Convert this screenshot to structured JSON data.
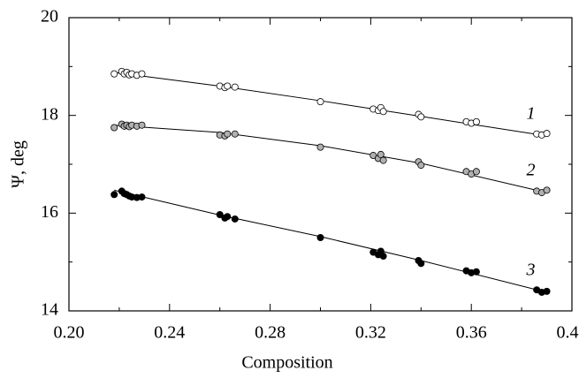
{
  "chart_data": {
    "type": "scatter",
    "xlabel": "Composition",
    "ylabel": "Ψ, deg",
    "xlim": [
      0.2,
      0.4
    ],
    "ylim": [
      14,
      20
    ],
    "xticks": [
      {
        "value": 0.2,
        "label": "0.20"
      },
      {
        "value": 0.24,
        "label": "0.24"
      },
      {
        "value": 0.28,
        "label": "0.28"
      },
      {
        "value": 0.32,
        "label": "0.32"
      },
      {
        "value": 0.36,
        "label": "0.36"
      },
      {
        "value": 0.4,
        "label": "0.40"
      }
    ],
    "yticks": [
      14,
      16,
      18,
      20
    ],
    "x_minor_ticks": [
      0.22,
      0.26,
      0.3,
      0.34,
      0.38
    ],
    "y_minor_ticks": [
      15,
      17,
      19
    ],
    "series": [
      {
        "name": "1",
        "color": "#ffffff",
        "x": [
          0.218,
          0.221,
          0.222,
          0.223,
          0.224,
          0.225,
          0.227,
          0.229,
          0.26,
          0.262,
          0.263,
          0.266,
          0.3,
          0.321,
          0.323,
          0.324,
          0.325,
          0.339,
          0.34,
          0.358,
          0.36,
          0.362,
          0.386,
          0.388,
          0.39
        ],
        "values": [
          18.85,
          18.9,
          18.85,
          18.88,
          18.83,
          18.85,
          18.82,
          18.85,
          18.6,
          18.57,
          18.6,
          18.58,
          18.28,
          18.13,
          18.1,
          18.16,
          18.08,
          18.02,
          17.97,
          17.87,
          17.84,
          17.87,
          17.62,
          17.6,
          17.63
        ],
        "fit_x": [
          0.218,
          0.26,
          0.3,
          0.34,
          0.39
        ],
        "fit_values": [
          18.88,
          18.6,
          18.3,
          17.98,
          17.58
        ]
      },
      {
        "name": "2",
        "color": "#b0b0b0",
        "x": [
          0.218,
          0.221,
          0.222,
          0.223,
          0.224,
          0.225,
          0.227,
          0.229,
          0.26,
          0.262,
          0.263,
          0.266,
          0.3,
          0.321,
          0.323,
          0.324,
          0.325,
          0.339,
          0.34,
          0.358,
          0.36,
          0.362,
          0.386,
          0.388,
          0.39
        ],
        "values": [
          17.75,
          17.82,
          17.78,
          17.8,
          17.77,
          17.8,
          17.78,
          17.8,
          17.6,
          17.58,
          17.62,
          17.62,
          17.35,
          17.18,
          17.12,
          17.2,
          17.08,
          17.05,
          16.98,
          16.85,
          16.8,
          16.85,
          16.45,
          16.42,
          16.47
        ],
        "fit_x": [
          0.218,
          0.26,
          0.3,
          0.34,
          0.39
        ],
        "fit_values": [
          17.8,
          17.65,
          17.38,
          17.02,
          16.42
        ]
      },
      {
        "name": "3",
        "color": "#000000",
        "x": [
          0.218,
          0.221,
          0.222,
          0.223,
          0.224,
          0.225,
          0.227,
          0.229,
          0.26,
          0.262,
          0.263,
          0.266,
          0.3,
          0.321,
          0.323,
          0.324,
          0.325,
          0.339,
          0.34,
          0.358,
          0.36,
          0.362,
          0.386,
          0.388,
          0.39
        ],
        "values": [
          16.38,
          16.45,
          16.4,
          16.38,
          16.35,
          16.33,
          16.32,
          16.33,
          15.97,
          15.9,
          15.93,
          15.88,
          15.5,
          15.2,
          15.15,
          15.22,
          15.12,
          15.03,
          14.97,
          14.82,
          14.78,
          14.8,
          14.43,
          14.38,
          14.4
        ],
        "fit_x": [
          0.218,
          0.26,
          0.3,
          0.34,
          0.39
        ],
        "fit_values": [
          16.47,
          15.96,
          15.52,
          15.03,
          14.38
        ]
      }
    ]
  }
}
